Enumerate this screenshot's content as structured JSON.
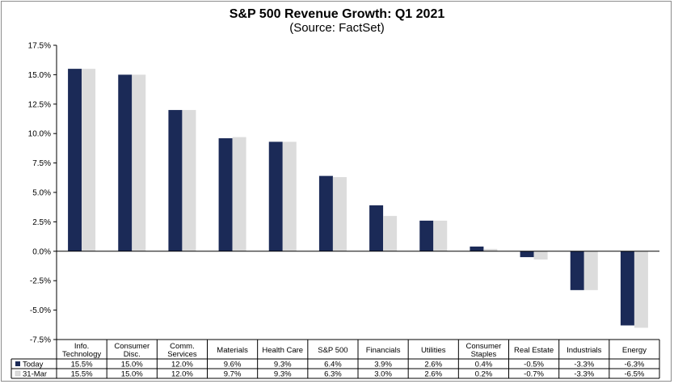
{
  "chart_data": {
    "type": "bar",
    "title": "S&P 500 Revenue Growth: Q1 2021",
    "subtitle": "(Source: FactSet)",
    "xlabel": "",
    "ylabel": "",
    "ylim": [
      -7.5,
      17.5
    ],
    "ytick_values": [
      17.5,
      15.0,
      12.5,
      10.0,
      7.5,
      5.0,
      2.5,
      0.0,
      -2.5,
      -5.0,
      -7.5
    ],
    "ytick_labels": [
      "17.5%",
      "15.0%",
      "12.5%",
      "10.0%",
      "7.5%",
      "5.0%",
      "2.5%",
      "0.0%",
      "-2.5%",
      "-5.0%",
      "-7.5%"
    ],
    "grid": false,
    "legend": "data-table-left",
    "categories": [
      [
        "Info.",
        "Technology"
      ],
      [
        "Consumer",
        "Disc."
      ],
      [
        "Comm.",
        "Services"
      ],
      [
        "Materials"
      ],
      [
        "Health Care"
      ],
      [
        "S&P 500"
      ],
      [
        "Financials"
      ],
      [
        "Utilities"
      ],
      [
        "Consumer",
        "Staples"
      ],
      [
        "Real Estate"
      ],
      [
        "Industrials"
      ],
      [
        "Energy"
      ]
    ],
    "series": [
      {
        "name": "Today",
        "color": "#1b2a57",
        "values": [
          15.5,
          15.0,
          12.0,
          9.6,
          9.3,
          6.4,
          3.9,
          2.6,
          0.4,
          -0.5,
          -3.3,
          -6.3
        ],
        "labels": [
          "15.5%",
          "15.0%",
          "12.0%",
          "9.6%",
          "9.3%",
          "6.4%",
          "3.9%",
          "2.6%",
          "0.4%",
          "-0.5%",
          "-3.3%",
          "-6.3%"
        ]
      },
      {
        "name": "31-Mar",
        "color": "#dcdcdc",
        "values": [
          15.5,
          15.0,
          12.0,
          9.7,
          9.3,
          6.3,
          3.0,
          2.6,
          0.2,
          -0.7,
          -3.3,
          -6.5
        ],
        "labels": [
          "15.5%",
          "15.0%",
          "12.0%",
          "9.7%",
          "9.3%",
          "6.3%",
          "3.0%",
          "2.6%",
          "0.2%",
          "-0.7%",
          "-3.3%",
          "-6.5%"
        ]
      }
    ]
  }
}
